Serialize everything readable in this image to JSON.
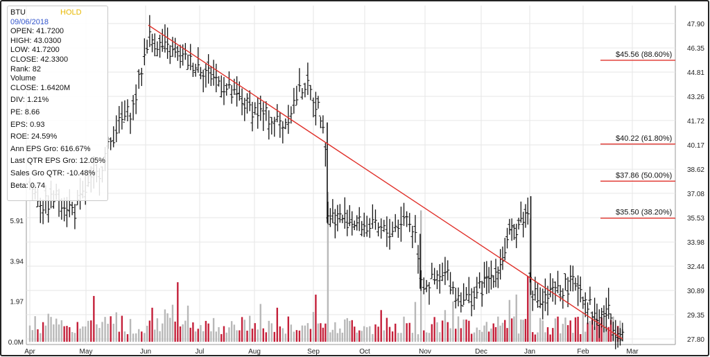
{
  "info_panel": {
    "ticker": "BTU",
    "rating": "HOLD",
    "date": "09/06/2018",
    "lines_top": [
      "OPEN: 41.7200",
      "HIGH: 43.0300",
      "LOW: 41.7200",
      "CLOSE: 42.3300",
      "Rank: 82",
      "Volume",
      "CLOSE: 1.6420M"
    ],
    "lines_bottom": [
      "DIV: 1.21%",
      "PE: 8.66",
      "EPS: 0.93",
      "ROE: 24.59%",
      "Ann EPS Gro: 616.67%",
      "Last QTR EPS Gro: 12.05%",
      "Sales Gro QTR: -10.48%",
      "Beta: 0.74"
    ]
  },
  "colors": {
    "price_bar": "#111111",
    "trendline": "#e0302a",
    "fib_line": "#e0302a",
    "volume_up": "#c4203a",
    "volume_down": "#b8b8b8",
    "border": "#222222"
  },
  "chart_data": {
    "type": "ohlc",
    "price_axis": {
      "ticks": [
        "47.90",
        "46.35",
        "44.81",
        "43.26",
        "41.72",
        "40.17",
        "38.62",
        "37.08",
        "35.53",
        "33.98",
        "32.44",
        "30.89",
        "29.35",
        "27.80"
      ],
      "range": [
        27.8,
        47.9
      ],
      "position": "right"
    },
    "volume_axis": {
      "ticks": [
        "5.91",
        "3.94",
        "1.97",
        "0.0M"
      ],
      "range": [
        0,
        7.88
      ],
      "position": "left"
    },
    "x_axis": {
      "labels": [
        "Apr",
        "May",
        "Jun",
        "Jul",
        "Aug",
        "Sep",
        "Oct",
        "Nov",
        "Dec",
        "Jan",
        "Feb",
        "Mar"
      ]
    },
    "grid": true,
    "anchors": [
      {
        "m": 0.0,
        "p": 37.6
      },
      {
        "m": 0.25,
        "p": 36.3
      },
      {
        "m": 0.5,
        "p": 36.9
      },
      {
        "m": 0.8,
        "p": 35.9
      },
      {
        "m": 1.0,
        "p": 37.3
      },
      {
        "m": 1.2,
        "p": 38.3
      },
      {
        "m": 1.5,
        "p": 41.2
      },
      {
        "m": 1.8,
        "p": 42.6
      },
      {
        "m": 2.05,
        "p": 47.1
      },
      {
        "m": 2.3,
        "p": 46.4
      },
      {
        "m": 2.6,
        "p": 45.8
      },
      {
        "m": 3.0,
        "p": 45.2
      },
      {
        "m": 3.3,
        "p": 44.4
      },
      {
        "m": 3.6,
        "p": 43.3
      },
      {
        "m": 3.9,
        "p": 42.6
      },
      {
        "m": 4.2,
        "p": 42.0
      },
      {
        "m": 4.5,
        "p": 41.5
      },
      {
        "m": 4.7,
        "p": 43.1
      },
      {
        "m": 4.85,
        "p": 44.1
      },
      {
        "m": 5.0,
        "p": 43.2
      },
      {
        "m": 5.15,
        "p": 42.1
      },
      {
        "m": 5.22,
        "p": 41.6
      },
      {
        "m": 5.28,
        "p": 35.7
      },
      {
        "m": 5.6,
        "p": 35.5
      },
      {
        "m": 6.0,
        "p": 35.0
      },
      {
        "m": 6.4,
        "p": 34.6
      },
      {
        "m": 6.7,
        "p": 35.6
      },
      {
        "m": 6.85,
        "p": 34.4
      },
      {
        "m": 6.95,
        "p": 31.3
      },
      {
        "m": 7.15,
        "p": 31.4
      },
      {
        "m": 7.4,
        "p": 31.9
      },
      {
        "m": 7.55,
        "p": 30.6
      },
      {
        "m": 7.8,
        "p": 30.3
      },
      {
        "m": 8.1,
        "p": 31.4
      },
      {
        "m": 8.4,
        "p": 32.6
      },
      {
        "m": 8.6,
        "p": 34.4
      },
      {
        "m": 8.9,
        "p": 35.7
      },
      {
        "m": 8.97,
        "p": 35.8
      },
      {
        "m": 9.02,
        "p": 31.0
      },
      {
        "m": 9.2,
        "p": 30.1
      },
      {
        "m": 9.4,
        "p": 30.6
      },
      {
        "m": 9.7,
        "p": 31.2
      },
      {
        "m": 9.9,
        "p": 31.4
      },
      {
        "m": 10.0,
        "p": 30.7
      },
      {
        "m": 10.3,
        "p": 28.9
      },
      {
        "m": 10.5,
        "p": 29.6
      },
      {
        "m": 10.65,
        "p": 28.6
      },
      {
        "m": 10.8,
        "p": 28.1
      }
    ],
    "trendline": {
      "from": {
        "m": 2.05,
        "p": 47.8
      },
      "to": {
        "m": 10.8,
        "p": 27.8
      }
    },
    "fibonacci_levels": [
      {
        "label": "$45.56 (88.60%)",
        "price": 45.56
      },
      {
        "label": "$40.22 (61.80%)",
        "price": 40.22
      },
      {
        "label": "$37.86 (50.00%)",
        "price": 37.86
      },
      {
        "label": "$35.50 (38.20%)",
        "price": 35.5
      }
    ],
    "volume_spikes_millions": [
      {
        "m": 5.27,
        "v": 7.3
      },
      {
        "m": 6.92,
        "v": 6.4
      },
      {
        "m": 9.03,
        "v": 6.0
      },
      {
        "m": 2.6,
        "v": 2.9
      },
      {
        "m": 8.95,
        "v": 3.2
      }
    ]
  }
}
